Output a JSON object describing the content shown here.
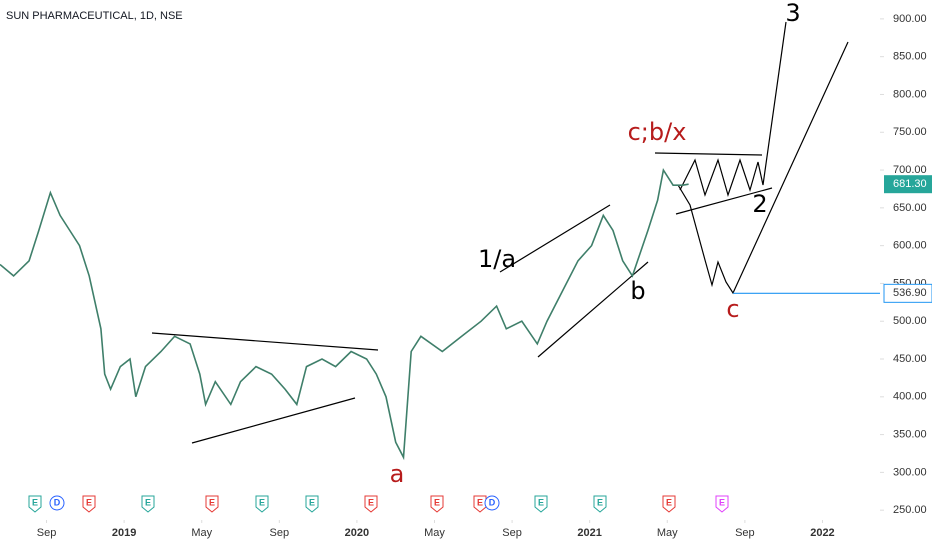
{
  "chart_data": {
    "type": "line",
    "title": "SUN PHARMACEUTICAL, 1D, NSE",
    "color": "#3f7f6a",
    "x": [
      -2.4,
      -1.7,
      -0.9,
      -0.4,
      0.2,
      0.7,
      1.2,
      1.7,
      2.2,
      2.8,
      3.0,
      3.3,
      3.8,
      4.3,
      4.6,
      5.1,
      5.9,
      6.6,
      7.4,
      7.9,
      8.2,
      8.7,
      9.5,
      10.0,
      10.8,
      11.6,
      12.3,
      12.9,
      13.4,
      14.2,
      14.9,
      15.7,
      16.5,
      17.0,
      17.5,
      18.0,
      18.4,
      18.8,
      19.3,
      20.4,
      21.4,
      22.4,
      23.2,
      23.7,
      24.5,
      25.3,
      25.8,
      26.6,
      27.4,
      28.1,
      28.7,
      29.2,
      29.7,
      30.2,
      31.0,
      31.5,
      31.8,
      32.3,
      32.8,
      33.1
    ],
    "values": [
      575,
      560,
      580,
      620,
      670,
      640,
      620,
      600,
      560,
      490,
      430,
      410,
      440,
      450,
      400,
      440,
      460,
      480,
      470,
      430,
      390,
      420,
      390,
      420,
      440,
      430,
      410,
      390,
      440,
      450,
      440,
      460,
      450,
      430,
      400,
      340,
      320,
      460,
      480,
      460,
      480,
      500,
      520,
      490,
      500,
      470,
      500,
      540,
      580,
      600,
      640,
      620,
      580,
      560,
      620,
      660,
      700,
      680,
      680,
      681.3
    ],
    "last_price": 681.3,
    "last_price_label": "681.30",
    "level": 536.9,
    "level_label": "536.90",
    "xlim": [
      -2.4,
      42.4
    ],
    "xticks": [
      {
        "value": 0,
        "label": "Sep"
      },
      {
        "value": 4,
        "label": "2019"
      },
      {
        "value": 8,
        "label": "May"
      },
      {
        "value": 12,
        "label": "Sep"
      },
      {
        "value": 16,
        "label": "2020"
      },
      {
        "value": 20,
        "label": "May"
      },
      {
        "value": 24,
        "label": "Sep"
      },
      {
        "value": 28,
        "label": "2021"
      },
      {
        "value": 32,
        "label": "May"
      },
      {
        "value": 36,
        "label": "Sep"
      },
      {
        "value": 40,
        "label": "2022"
      }
    ],
    "ylim": [
      237,
      925
    ],
    "yticks": [
      {
        "value": 250,
        "label": "250.00"
      },
      {
        "value": 300,
        "label": "300.00"
      },
      {
        "value": 350,
        "label": "350.00"
      },
      {
        "value": 400,
        "label": "400.00"
      },
      {
        "value": 450,
        "label": "450.00"
      },
      {
        "value": 500,
        "label": "500.00"
      },
      {
        "value": 550,
        "label": "550.00"
      },
      {
        "value": 600,
        "label": "600.00"
      },
      {
        "value": 650,
        "label": "650.00"
      },
      {
        "value": 700,
        "label": "700.00"
      },
      {
        "value": 750,
        "label": "750.00"
      },
      {
        "value": 800,
        "label": "800.00"
      },
      {
        "value": 850,
        "label": "850.00"
      },
      {
        "value": 900,
        "label": "900.00"
      }
    ],
    "annotations": [
      "3",
      "c;b/x",
      "1/a",
      "b",
      "2",
      "a",
      "c"
    ],
    "events": [
      "E",
      "D",
      "E",
      "E",
      "E",
      "E",
      "E",
      "E",
      "E",
      "E",
      "D",
      "E",
      "E",
      "E",
      "E"
    ]
  }
}
